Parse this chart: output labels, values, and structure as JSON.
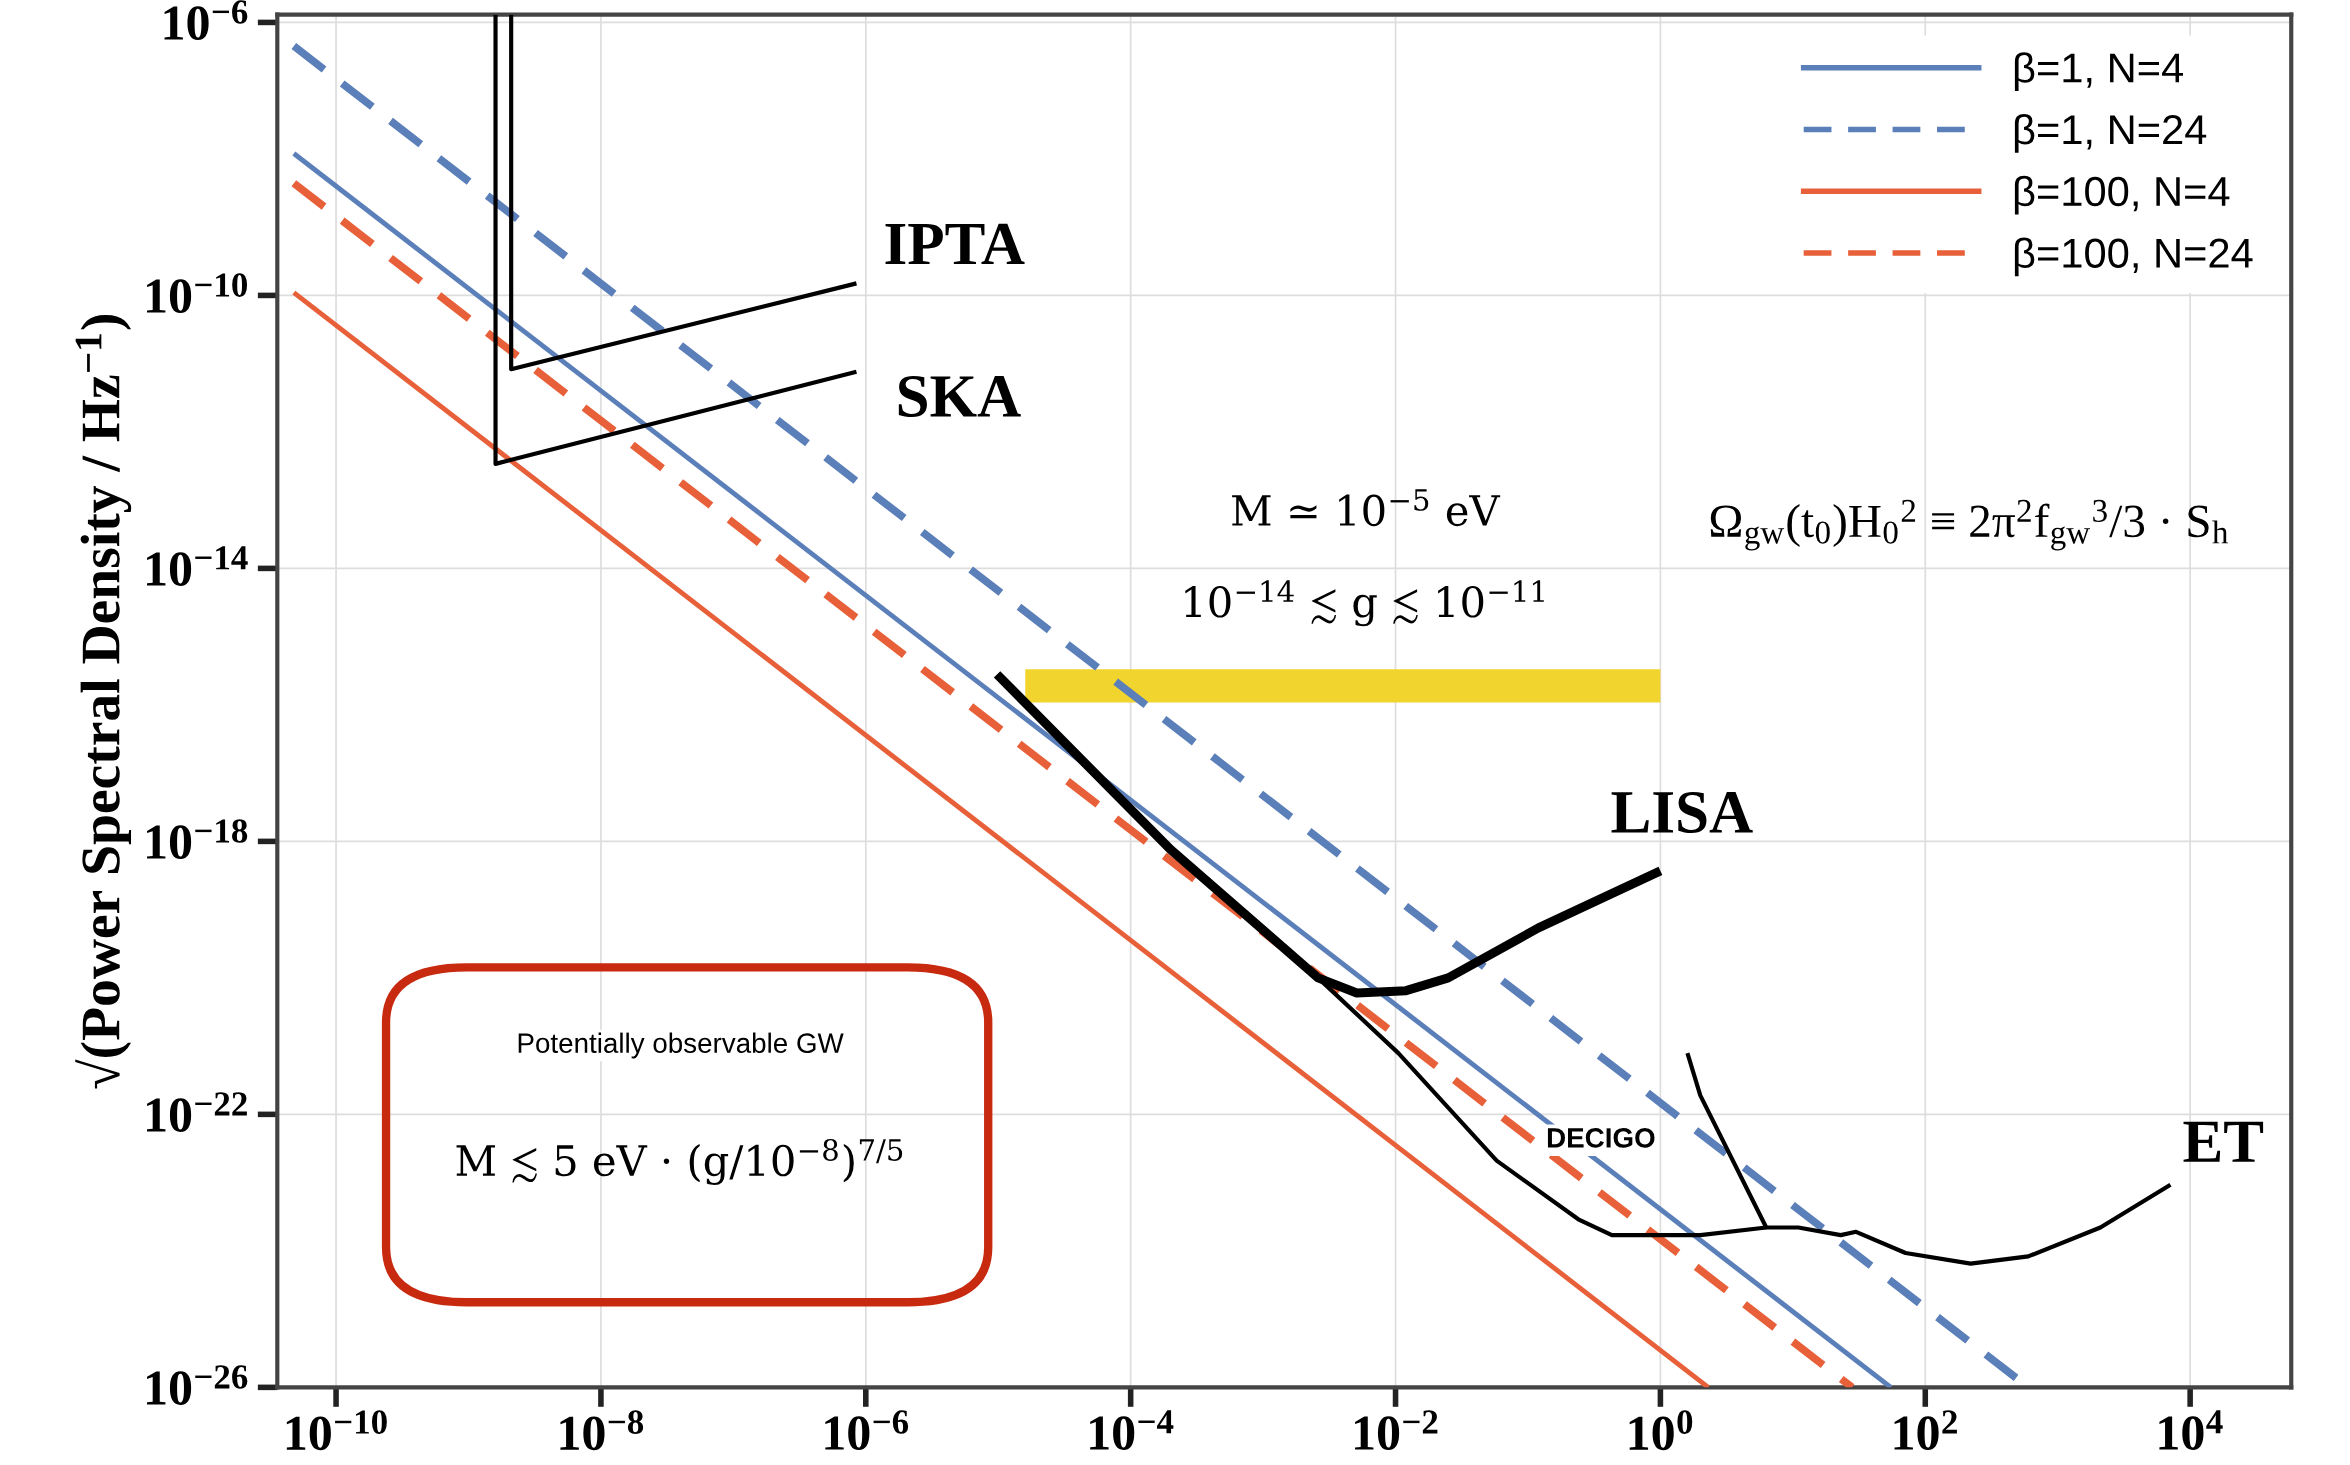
{
  "chart_data": {
    "type": "line",
    "ylabel": "√(Power Spectral Density / Hz$^{−1}$)",
    "xlim": [
      3.6e-11,
      58000.0
    ],
    "ylim": [
      1e-26,
      1.3e-06
    ],
    "log": "xy",
    "xticks": [
      {
        "value": 1e-10,
        "label": "10$^{−10}$"
      },
      {
        "value": 1e-08,
        "label": "10$^{−8}$"
      },
      {
        "value": 1e-06,
        "label": "10$^{−6}$"
      },
      {
        "value": 0.0001,
        "label": "10$^{−4}$"
      },
      {
        "value": 0.01,
        "label": "10$^{−2}$"
      },
      {
        "value": 1,
        "label": "10$^{0}$"
      },
      {
        "value": 100,
        "label": "10$^{2}$"
      },
      {
        "value": 10000,
        "label": "10$^{4}$"
      }
    ],
    "yticks": [
      {
        "value": 1e-06,
        "label": "10$^{−6}$"
      },
      {
        "value": 1e-10,
        "label": "10$^{−10}$"
      },
      {
        "value": 1e-14,
        "label": "10$^{−14}$"
      },
      {
        "value": 1e-18,
        "label": "10$^{−18}$"
      },
      {
        "value": 1e-22,
        "label": "10$^{−22}$"
      },
      {
        "value": 1e-26,
        "label": "10$^{−26}$"
      }
    ],
    "grid": true,
    "legend": "top right",
    "series": [
      {
        "color": "#f2d42e",
        "line_style": "solid",
        "x": [
          1.6e-05,
          1
        ],
        "values": [
          1.9e-16,
          1.9e-16
        ]
      },
      {
        "name": "β=1, N=4",
        "color": "#5b7fb9",
        "line_style": "solid",
        "x": [
          4.8e-11,
          55
        ],
        "values": [
          1.2e-08,
          1e-26
        ]
      },
      {
        "name": "β=1, N=24",
        "color": "#5b7fb9",
        "line_style": "dashed",
        "x": [
          4.8e-11,
          600
        ],
        "values": [
          4.5e-07,
          1e-26
        ]
      },
      {
        "name": "β=100, N=4",
        "color": "#e8603a",
        "line_style": "solid",
        "x": [
          4.8e-11,
          2.3
        ],
        "values": [
          1.1e-10,
          1e-26
        ]
      },
      {
        "name": "β=100, N=24",
        "color": "#e8603a",
        "line_style": "dashed",
        "x": [
          4.8e-11,
          28
        ],
        "values": [
          4.4e-09,
          1e-26
        ]
      },
      {
        "color": "#000000",
        "line_style": "solid",
        "x": [
          2.1e-09,
          2.1e-09,
          8.5e-07
        ],
        "values": [
          1.3e-06,
          8.3e-12,
          1.5e-10
        ]
      },
      {
        "color": "#000000",
        "line_style": "solid",
        "x": [
          1.6e-09,
          1.6e-09,
          8.5e-07
        ],
        "values": [
          1.3e-06,
          3.4e-13,
          7.6e-12
        ]
      },
      {
        "color": "#000000",
        "line_style": "solid",
        "x": [
          9.8e-06,
          0.0002,
          0.0026,
          0.0051,
          0.012,
          0.025,
          0.12,
          1
        ],
        "values": [
          2.8e-16,
          7.6e-19,
          1e-20,
          6e-21,
          6.5e-21,
          1e-20,
          5.4e-20,
          3.7e-19
        ]
      },
      {
        "color": "#000000",
        "line_style": "solid",
        "x": [
          0.0026,
          0.0105,
          0.058,
          0.24,
          0.43,
          2.0,
          6.3
        ],
        "values": [
          1e-20,
          7.9e-22,
          2.1e-23,
          2.9e-24,
          1.7e-24,
          1.7e-24,
          2.2e-24
        ]
      },
      {
        "color": "#000000",
        "line_style": "solid",
        "x": [
          1.6,
          2.0,
          6.3,
          11,
          23,
          30,
          71,
          220,
          600,
          2100,
          7100
        ],
        "values": [
          7.9e-22,
          1.9e-22,
          2.2e-24,
          2.2e-24,
          1.7e-24,
          1.9e-24,
          9.3e-25,
          6.5e-25,
          8.3e-25,
          2.2e-24,
          9.3e-24
        ]
      }
    ],
    "annotations": [
      "IPTA",
      "SKA",
      "M ≃ 10$^{−5}$ eV",
      "10$^{−14}$ ≲ g ≲ 10$^{−11}$",
      "Ω$_{gw}$(t$_{0}$)H$_{0}$$^{2}$ ≡ 2π$^{2}$f$_{gw}$$^{3}$/3 · S$_{h}$",
      "LISA",
      "DECIGO",
      "ET",
      "Potentially observable GW",
      "M ≲ 5 eV · (g/10$^{−8}$)$^{7/5}$"
    ]
  }
}
